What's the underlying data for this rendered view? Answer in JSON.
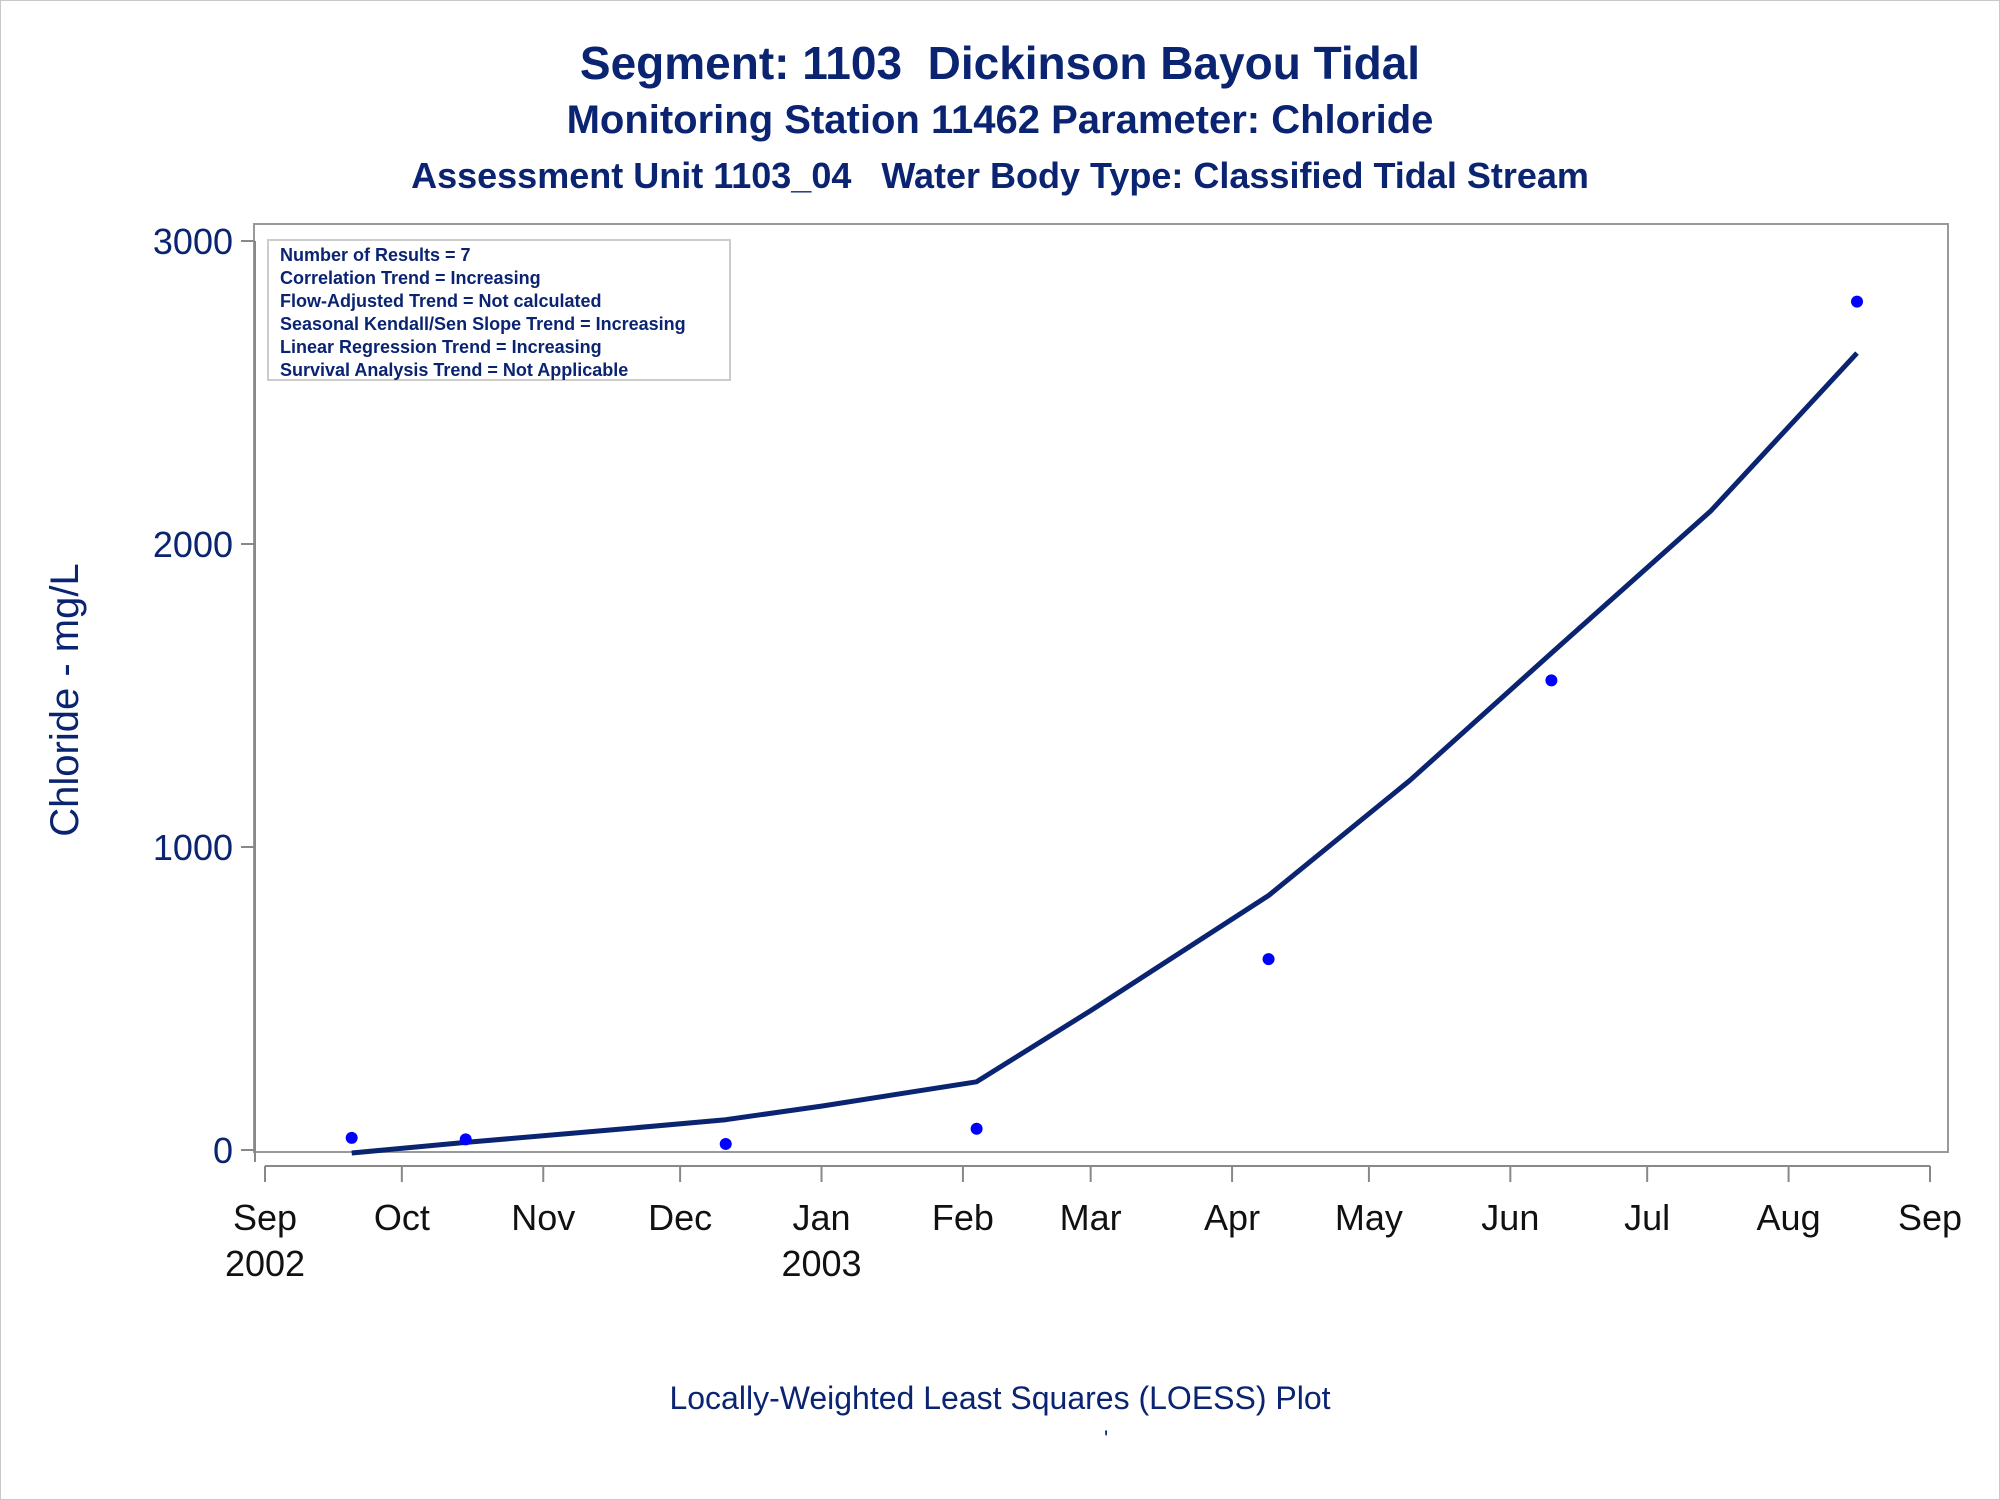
{
  "titles": {
    "line1": "Segment: 1103  Dickinson Bayou Tidal",
    "line2": "Monitoring Station 11462 Parameter: Chloride",
    "line3": "Assessment Unit 1103_04   Water Body Type: Classified Tidal Stream"
  },
  "footnote": "Locally-Weighted Least Squares (LOESS) Plot",
  "footnote_mark": "'",
  "colors": {
    "text": "#0a2472",
    "points": "#0000ff",
    "line": "#0a2472",
    "axis": "#888888"
  },
  "chart_data": {
    "type": "scatter",
    "ylabel": "Chloride - mg/L",
    "ylim": [
      0,
      3000
    ],
    "yticks": [
      0,
      1000,
      2000,
      3000
    ],
    "xlim": [
      "2002-09-01",
      "2003-09-01"
    ],
    "xticks": [
      {
        "date": "2002-09-01",
        "label": "Sep",
        "sublabel": "2002"
      },
      {
        "date": "2002-10-01",
        "label": "Oct",
        "sublabel": ""
      },
      {
        "date": "2002-11-01",
        "label": "Nov",
        "sublabel": ""
      },
      {
        "date": "2002-12-01",
        "label": "Dec",
        "sublabel": ""
      },
      {
        "date": "2003-01-01",
        "label": "Jan",
        "sublabel": "2003"
      },
      {
        "date": "2003-02-01",
        "label": "Feb",
        "sublabel": ""
      },
      {
        "date": "2003-03-01",
        "label": "Mar",
        "sublabel": ""
      },
      {
        "date": "2003-04-01",
        "label": "Apr",
        "sublabel": ""
      },
      {
        "date": "2003-05-01",
        "label": "May",
        "sublabel": ""
      },
      {
        "date": "2003-06-01",
        "label": "Jun",
        "sublabel": ""
      },
      {
        "date": "2003-07-01",
        "label": "Jul",
        "sublabel": ""
      },
      {
        "date": "2003-08-01",
        "label": "Aug",
        "sublabel": ""
      },
      {
        "date": "2003-09-01",
        "label": "Sep",
        "sublabel": ""
      }
    ],
    "points": [
      {
        "x": "2002-09-20",
        "y": 40
      },
      {
        "x": "2002-10-15",
        "y": 35
      },
      {
        "x": "2002-12-11",
        "y": 20
      },
      {
        "x": "2003-02-04",
        "y": 70
      },
      {
        "x": "2003-04-09",
        "y": 630
      },
      {
        "x": "2003-06-10",
        "y": 1550
      },
      {
        "x": "2003-08-16",
        "y": 2800
      }
    ],
    "loess_line": [
      {
        "x": "2002-09-20",
        "y": -10
      },
      {
        "x": "2002-10-15",
        "y": 25
      },
      {
        "x": "2002-11-15",
        "y": 65
      },
      {
        "x": "2002-12-11",
        "y": 100
      },
      {
        "x": "2003-01-01",
        "y": 145
      },
      {
        "x": "2003-02-04",
        "y": 225
      },
      {
        "x": "2003-03-01",
        "y": 460
      },
      {
        "x": "2003-04-09",
        "y": 840
      },
      {
        "x": "2003-05-10",
        "y": 1220
      },
      {
        "x": "2003-06-10",
        "y": 1640
      },
      {
        "x": "2003-07-15",
        "y": 2110
      },
      {
        "x": "2003-08-16",
        "y": 2630
      }
    ],
    "legend_box": {
      "placement": "top-left",
      "lines": [
        "Number of Results = 7",
        "Correlation Trend = Increasing",
        "Flow-Adjusted Trend = Not calculated",
        "Seasonal Kendall/Sen Slope Trend = Increasing",
        "Linear Regression Trend = Increasing",
        "Survival Analysis Trend = Not Applicable"
      ]
    },
    "grid": false
  }
}
